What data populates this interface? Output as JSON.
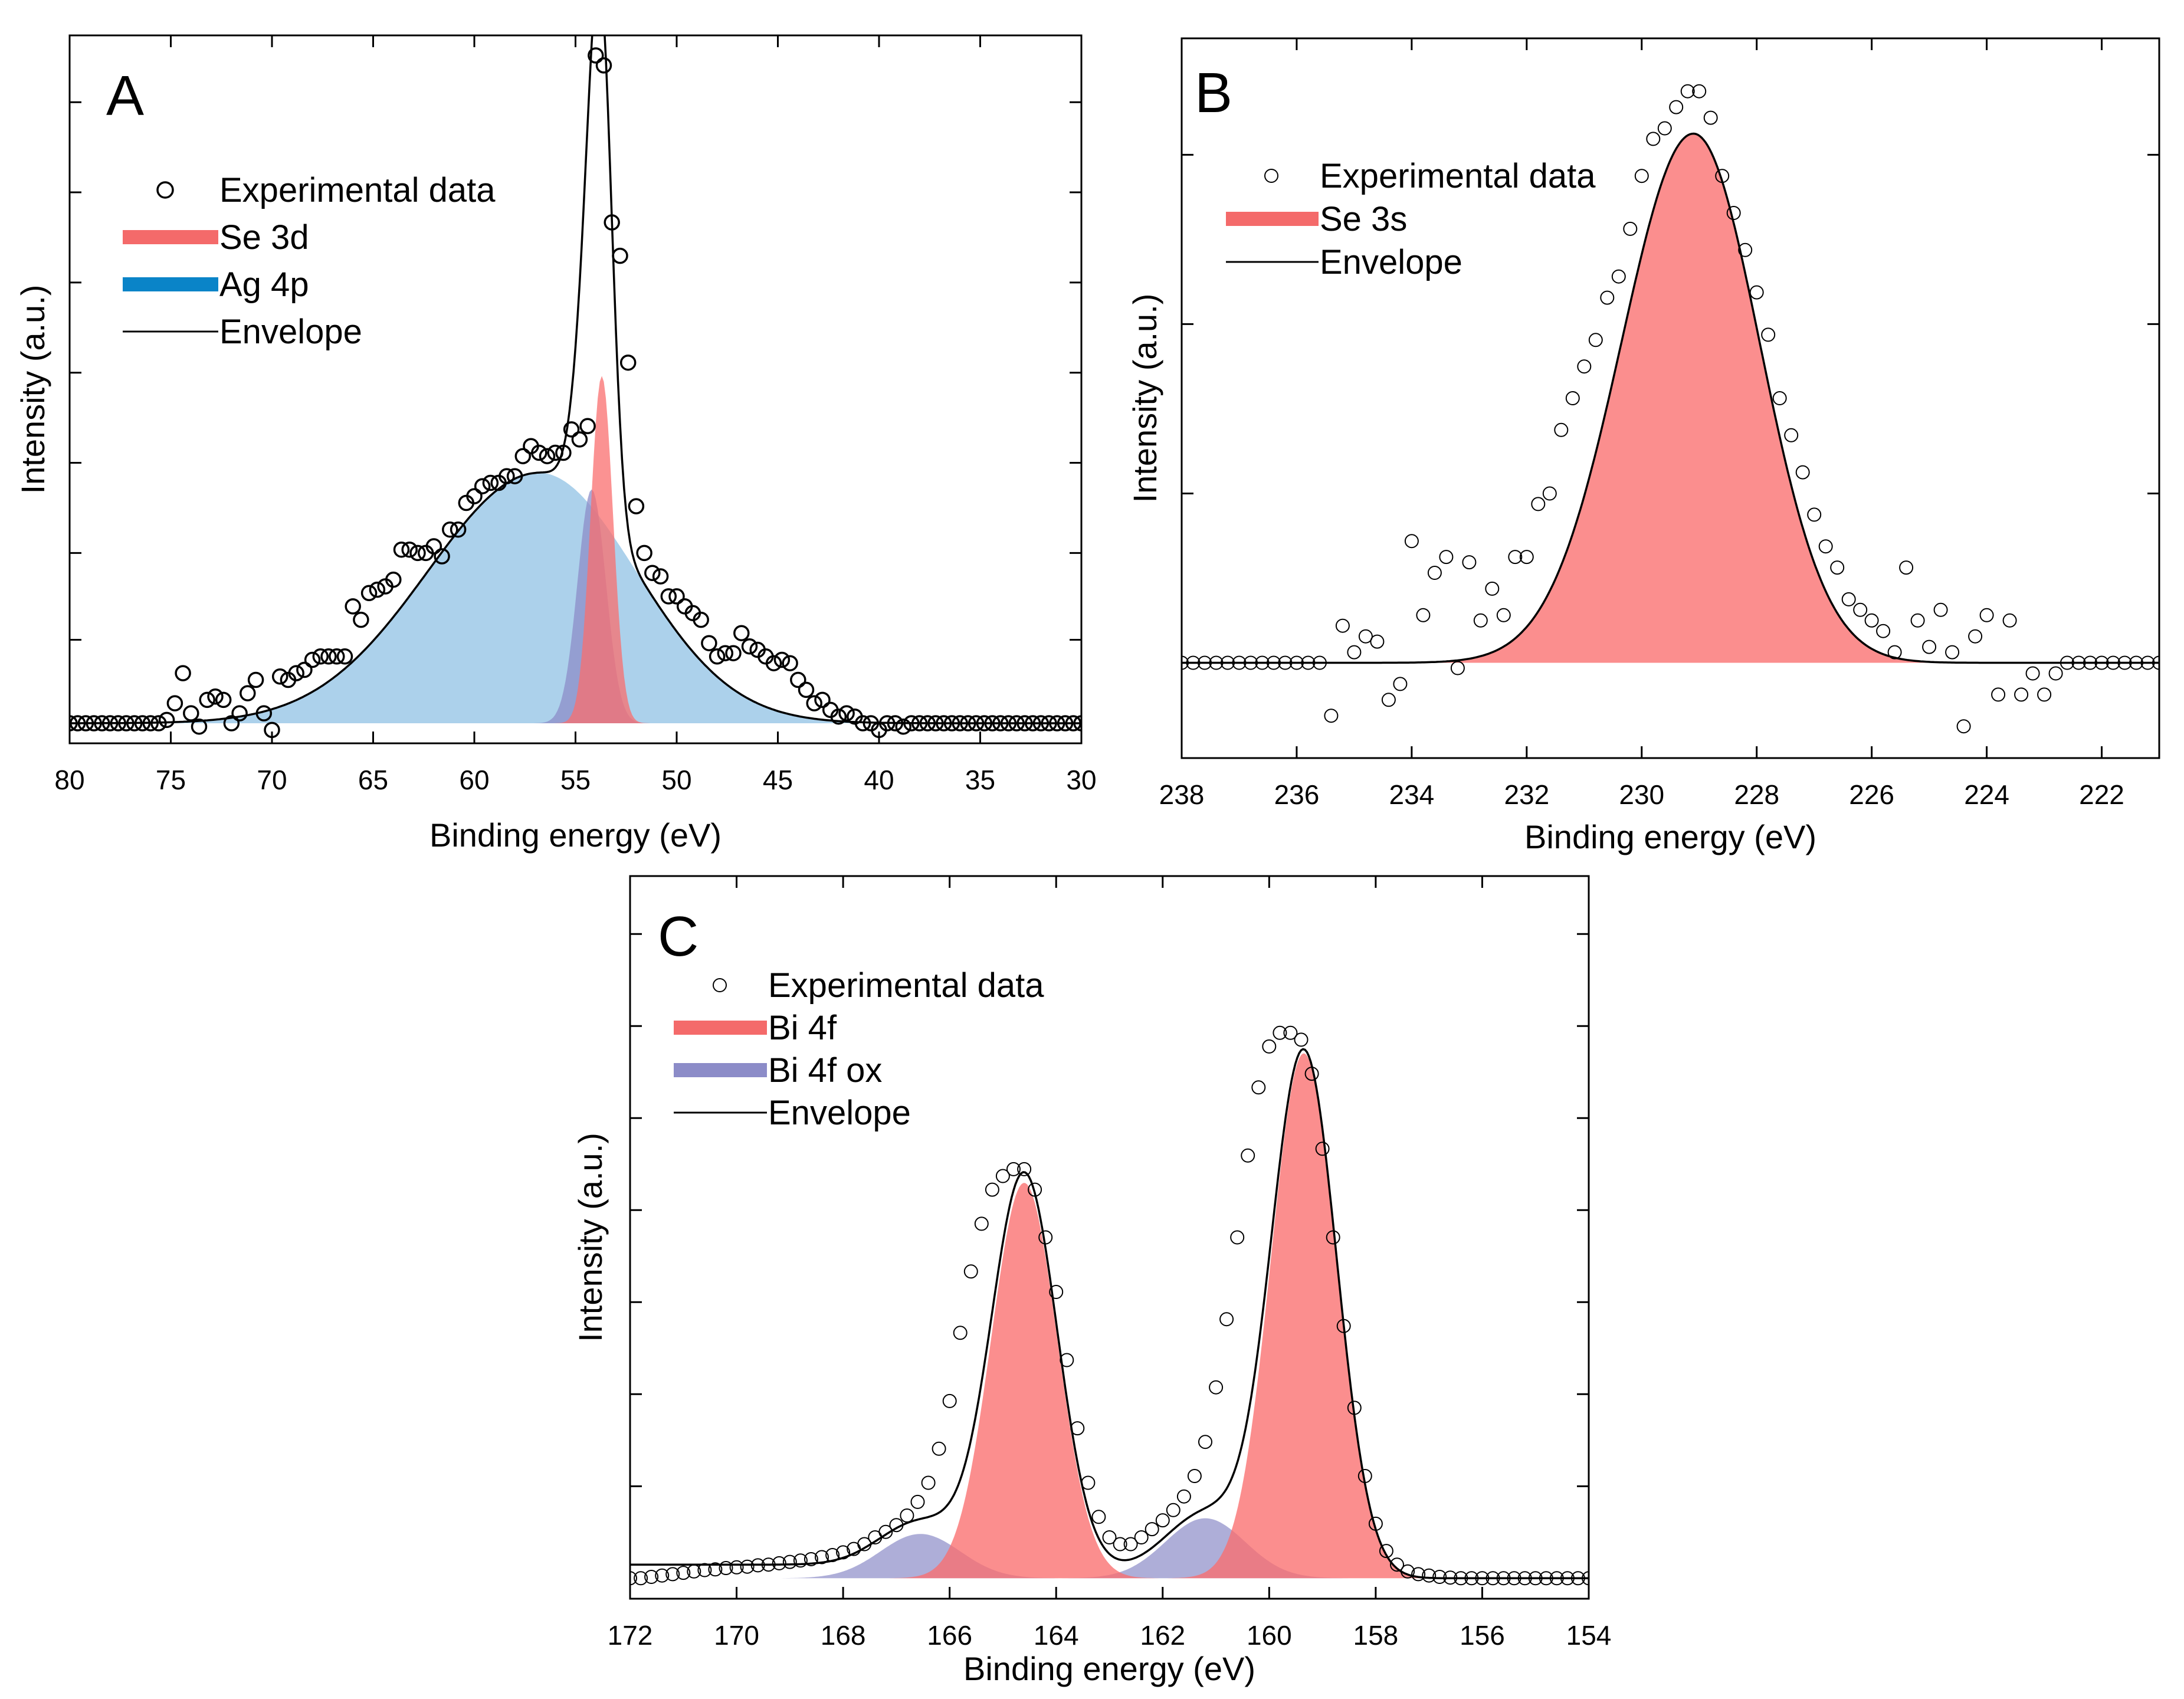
{
  "figure": {
    "colors": {
      "red_fill": "#fa6e6e",
      "red_legend": "#f46a6a",
      "blue_fill": "#7fb8e0",
      "blue_legend": "#0a84c8",
      "purple_fill": "#8c8cc8",
      "purple_legend": "#8c8cc8",
      "envelope": "#000000",
      "marker": "#000000"
    }
  },
  "chart_data": [
    {
      "panel": "A",
      "type": "scatter",
      "xlabel": "Binding energy (eV)",
      "ylabel": "Intensity (a.u.)",
      "xlim": [
        80,
        30
      ],
      "ylim": [
        -0.03,
        1.03
      ],
      "xticks": [
        80,
        75,
        70,
        65,
        60,
        55,
        50,
        45,
        40,
        35,
        30
      ],
      "yticks": [
        0.125,
        0.255,
        0.39,
        0.525,
        0.66,
        0.795,
        0.93
      ],
      "legend": [
        {
          "label": "Experimental data",
          "kind": "marker"
        },
        {
          "label": "Se 3d",
          "kind": "fill",
          "color": "red_legend"
        },
        {
          "label": "Ag 4p",
          "kind": "fill",
          "color": "blue_legend"
        },
        {
          "label": "Envelope",
          "kind": "line"
        }
      ],
      "components": [
        {
          "name": "Ag 4p",
          "shape": "asym_gauss",
          "center": 56.8,
          "amplitude": 0.375,
          "sigma_left": 5.5,
          "sigma_right": 4.8,
          "color": "blue_fill",
          "opacity": 0.65
        },
        {
          "name": "Ag 4p (2)",
          "shape": "gauss",
          "center": 54.2,
          "amplitude": 0.35,
          "sigma": 0.7,
          "color": "purple_fill",
          "opacity": 0.75
        },
        {
          "name": "Se 3d",
          "shape": "gauss",
          "center": 53.7,
          "amplitude": 0.52,
          "sigma": 0.55,
          "color": "red_fill",
          "opacity": 0.75
        }
      ],
      "experimental": {
        "x": [
          80.0,
          79.6,
          79.2,
          78.8,
          78.4,
          78.0,
          77.6,
          77.2,
          76.8,
          76.4,
          76.0,
          75.6,
          75.2,
          74.8,
          74.4,
          74.0,
          73.6,
          73.2,
          72.8,
          72.4,
          72.0,
          71.6,
          71.2,
          70.8,
          70.4,
          70.0,
          69.6,
          69.2,
          68.8,
          68.4,
          68.0,
          67.6,
          67.2,
          66.8,
          66.4,
          66.0,
          65.6,
          65.2,
          64.8,
          64.4,
          64.0,
          63.6,
          63.2,
          62.8,
          62.4,
          62.0,
          61.6,
          61.2,
          60.8,
          60.4,
          60.0,
          59.6,
          59.2,
          58.8,
          58.4,
          58.0,
          57.6,
          57.2,
          56.8,
          56.4,
          56.0,
          55.6,
          55.2,
          54.8,
          54.4,
          54.0,
          53.6,
          53.2,
          52.8,
          52.4,
          52.0,
          51.6,
          51.2,
          50.8,
          50.4,
          50.0,
          49.6,
          49.2,
          48.8,
          48.4,
          48.0,
          47.6,
          47.2,
          46.8,
          46.4,
          46.0,
          45.6,
          45.2,
          44.8,
          44.4,
          44.0,
          43.6,
          43.2,
          42.8,
          42.4,
          42.0,
          41.6,
          41.2,
          40.8,
          40.4,
          40.0,
          39.6,
          39.2,
          38.8,
          38.4,
          38.0,
          37.6,
          37.2,
          36.8,
          36.4,
          36.0,
          35.6,
          35.2,
          34.8,
          34.4,
          34.0,
          33.6,
          33.2,
          32.8,
          32.4,
          32.0,
          31.6,
          31.2,
          30.8,
          30.4,
          30.0
        ],
        "y": [
          0.0,
          0.0,
          0.0,
          0.0,
          0.0,
          0.0,
          0.0,
          0.0,
          0.0,
          0.0,
          0.0,
          0.0,
          0.005,
          0.03,
          0.075,
          0.015,
          -0.005,
          0.035,
          0.04,
          0.035,
          0.0,
          0.015,
          0.045,
          0.065,
          0.015,
          -0.01,
          0.07,
          0.065,
          0.075,
          0.08,
          0.095,
          0.1,
          0.1,
          0.1,
          0.1,
          0.175,
          0.155,
          0.195,
          0.2,
          0.205,
          0.215,
          0.26,
          0.26,
          0.255,
          0.255,
          0.265,
          0.25,
          0.29,
          0.29,
          0.33,
          0.34,
          0.355,
          0.36,
          0.36,
          0.37,
          0.37,
          0.4,
          0.415,
          0.405,
          0.4,
          0.405,
          0.405,
          0.44,
          0.425,
          0.445,
          1.0,
          0.985,
          0.75,
          0.7,
          0.54,
          0.325,
          0.255,
          0.225,
          0.22,
          0.19,
          0.19,
          0.175,
          0.165,
          0.155,
          0.12,
          0.1,
          0.105,
          0.105,
          0.135,
          0.115,
          0.11,
          0.1,
          0.09,
          0.095,
          0.09,
          0.065,
          0.05,
          0.03,
          0.035,
          0.02,
          0.01,
          0.015,
          0.01,
          0.0,
          0.0,
          -0.01,
          0.0,
          0.0,
          -0.005,
          0.0,
          0.0,
          0.0,
          0.0,
          0.0,
          0.0,
          0.0,
          0.0,
          0.0,
          0.0,
          0.0,
          0.0,
          0.0,
          0.0,
          0.0,
          0.0,
          0.0,
          0.0,
          0.0,
          0.0,
          0.0,
          0.0
        ]
      },
      "letter": "A"
    },
    {
      "panel": "B",
      "type": "scatter",
      "xlabel": "Binding energy (eV)",
      "ylabel": "Intensity (a.u.)",
      "xlim": [
        238,
        221
      ],
      "ylim": [
        -0.18,
        1.18
      ],
      "xticks": [
        238,
        236,
        234,
        232,
        230,
        228,
        226,
        224,
        222
      ],
      "yticks": [
        0.32,
        0.64,
        0.96
      ],
      "legend": [
        {
          "label": "Experimental data",
          "kind": "marker"
        },
        {
          "label": "Se 3s",
          "kind": "fill",
          "color": "red_legend"
        },
        {
          "label": "Envelope",
          "kind": "line"
        }
      ],
      "components": [
        {
          "name": "Se 3s",
          "shape": "asym_gauss",
          "center": 229.1,
          "amplitude": 1.0,
          "sigma_left": 1.25,
          "sigma_right": 1.15,
          "color": "red_fill",
          "opacity": 0.78
        }
      ],
      "experimental": {
        "x": [
          238.0,
          237.8,
          237.6,
          237.4,
          237.2,
          237.0,
          236.8,
          236.6,
          236.4,
          236.2,
          236.0,
          235.8,
          235.6,
          235.4,
          235.2,
          235.0,
          234.8,
          234.6,
          234.4,
          234.2,
          234.0,
          233.8,
          233.6,
          233.4,
          233.2,
          233.0,
          232.8,
          232.6,
          232.4,
          232.2,
          232.0,
          231.8,
          231.6,
          231.4,
          231.2,
          231.0,
          230.8,
          230.6,
          230.4,
          230.2,
          230.0,
          229.8,
          229.6,
          229.4,
          229.2,
          229.0,
          228.8,
          228.6,
          228.4,
          228.2,
          228.0,
          227.8,
          227.6,
          227.4,
          227.2,
          227.0,
          226.8,
          226.6,
          226.4,
          226.2,
          226.0,
          225.8,
          225.6,
          225.4,
          225.2,
          225.0,
          224.8,
          224.6,
          224.4,
          224.2,
          224.0,
          223.8,
          223.6,
          223.4,
          223.2,
          223.0,
          222.8,
          222.6,
          222.4,
          222.2,
          222.0,
          221.8,
          221.6,
          221.4,
          221.2,
          221.0
        ],
        "y": [
          0.0,
          0.0,
          0.0,
          0.0,
          0.0,
          0.0,
          0.0,
          0.0,
          0.0,
          0.0,
          0.0,
          0.0,
          0.0,
          -0.1,
          0.07,
          0.02,
          0.05,
          0.04,
          -0.07,
          -0.04,
          0.23,
          0.09,
          0.17,
          0.2,
          -0.01,
          0.19,
          0.08,
          0.14,
          0.09,
          0.2,
          0.2,
          0.3,
          0.32,
          0.44,
          0.5,
          0.56,
          0.61,
          0.69,
          0.73,
          0.82,
          0.92,
          0.99,
          1.01,
          1.05,
          1.08,
          1.08,
          1.03,
          0.92,
          0.85,
          0.78,
          0.7,
          0.62,
          0.5,
          0.43,
          0.36,
          0.28,
          0.22,
          0.18,
          0.12,
          0.1,
          0.08,
          0.06,
          0.02,
          0.18,
          0.08,
          0.03,
          0.1,
          0.02,
          -0.12,
          0.05,
          0.09,
          -0.06,
          0.08,
          -0.06,
          -0.02,
          -0.06,
          -0.02,
          0.0,
          0.0,
          0.0,
          0.0,
          0.0,
          0.0,
          0.0,
          0.0,
          0.0
        ]
      },
      "letter": "B"
    },
    {
      "panel": "C",
      "type": "scatter",
      "xlabel": "Binding energy (eV)",
      "ylabel": "Intensity (a.u.)",
      "xlim": [
        172,
        154
      ],
      "ylim": [
        -0.03,
        1.03
      ],
      "xticks": [
        172,
        170,
        168,
        166,
        164,
        162,
        160,
        158,
        156,
        154
      ],
      "yticks": [
        0.135,
        0.27,
        0.405,
        0.54,
        0.675,
        0.81,
        0.945
      ],
      "legend": [
        {
          "label": "Experimental data",
          "kind": "marker"
        },
        {
          "label": "Bi 4f",
          "kind": "fill",
          "color": "red_legend"
        },
        {
          "label": "Bi 4f ox",
          "kind": "fill",
          "color": "purple_legend"
        },
        {
          "label": "Envelope",
          "kind": "line"
        }
      ],
      "components": [
        {
          "name": "Bi 4f ox 5/2",
          "shape": "gauss",
          "center": 166.55,
          "amplitude": 0.065,
          "sigma": 0.75,
          "color": "purple_fill",
          "opacity": 0.7
        },
        {
          "name": "Bi 4f ox 7/2",
          "shape": "gauss",
          "center": 161.2,
          "amplitude": 0.088,
          "sigma": 0.75,
          "color": "purple_fill",
          "opacity": 0.7
        },
        {
          "name": "Bi 4f 5/2",
          "shape": "gauss",
          "center": 164.6,
          "amplitude": 0.58,
          "sigma": 0.62,
          "color": "red_fill",
          "opacity": 0.78
        },
        {
          "name": "Bi 4f 7/2",
          "shape": "gauss",
          "center": 159.35,
          "amplitude": 0.77,
          "sigma": 0.62,
          "color": "red_fill",
          "opacity": 0.78
        }
      ],
      "background": {
        "start": 167.5,
        "end": 158.5,
        "height": 0.02
      },
      "experimental": {
        "x": [
          172.0,
          171.8,
          171.6,
          171.4,
          171.2,
          171.0,
          170.8,
          170.6,
          170.4,
          170.2,
          170.0,
          169.8,
          169.6,
          169.4,
          169.2,
          169.0,
          168.8,
          168.6,
          168.4,
          168.2,
          168.0,
          167.8,
          167.6,
          167.4,
          167.2,
          167.0,
          166.8,
          166.6,
          166.4,
          166.2,
          166.0,
          165.8,
          165.6,
          165.4,
          165.2,
          165.0,
          164.8,
          164.6,
          164.4,
          164.2,
          164.0,
          163.8,
          163.6,
          163.4,
          163.2,
          163.0,
          162.8,
          162.6,
          162.4,
          162.2,
          162.0,
          161.8,
          161.6,
          161.4,
          161.2,
          161.0,
          160.8,
          160.6,
          160.4,
          160.2,
          160.0,
          159.8,
          159.6,
          159.4,
          159.2,
          159.0,
          158.8,
          158.6,
          158.4,
          158.2,
          158.0,
          157.8,
          157.6,
          157.4,
          157.2,
          157.0,
          156.8,
          156.6,
          156.4,
          156.2,
          156.0,
          155.8,
          155.6,
          155.4,
          155.2,
          155.0,
          154.8,
          154.6,
          154.4,
          154.2,
          154.0
        ],
        "y": [
          0.0,
          0.0,
          0.002,
          0.004,
          0.006,
          0.008,
          0.01,
          0.012,
          0.013,
          0.015,
          0.016,
          0.017,
          0.019,
          0.02,
          0.022,
          0.024,
          0.026,
          0.028,
          0.031,
          0.034,
          0.038,
          0.043,
          0.05,
          0.06,
          0.068,
          0.078,
          0.092,
          0.112,
          0.14,
          0.19,
          0.26,
          0.36,
          0.45,
          0.52,
          0.57,
          0.59,
          0.6,
          0.6,
          0.57,
          0.5,
          0.42,
          0.32,
          0.22,
          0.14,
          0.09,
          0.06,
          0.05,
          0.05,
          0.06,
          0.072,
          0.085,
          0.1,
          0.12,
          0.15,
          0.2,
          0.28,
          0.38,
          0.5,
          0.62,
          0.72,
          0.78,
          0.8,
          0.8,
          0.79,
          0.74,
          0.63,
          0.5,
          0.37,
          0.25,
          0.15,
          0.08,
          0.04,
          0.02,
          0.01,
          0.006,
          0.004,
          0.002,
          0.001,
          0.0,
          0.0,
          0.0,
          0.0,
          0.0,
          0.0,
          0.0,
          0.0,
          0.0,
          0.0,
          0.0,
          0.0,
          0.0
        ]
      },
      "letter": "C"
    }
  ]
}
